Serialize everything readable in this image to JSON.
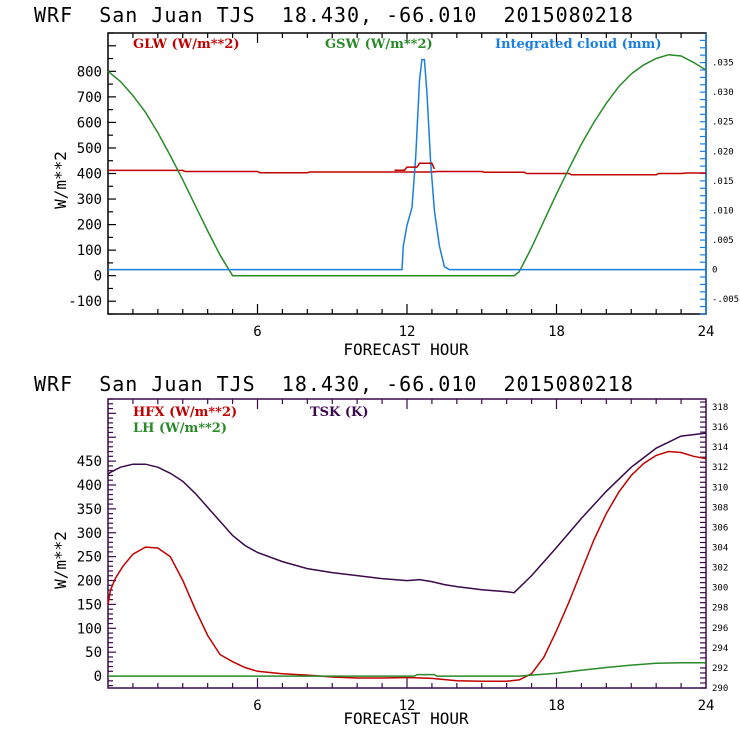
{
  "chart_data": [
    {
      "type": "line",
      "title": "WRF  San Juan TJS  18.430, -66.010  2015080218",
      "xlabel": "FORECAST HOUR",
      "ylabel": "W/m**2",
      "xlim": [
        0,
        24
      ],
      "ylim": [
        -150,
        950
      ],
      "y2lim": [
        -0.0075,
        0.04
      ],
      "x_ticks": [
        "6",
        "12",
        "18",
        "24"
      ],
      "x_tick_values": [
        6,
        12,
        18,
        24
      ],
      "y_ticks": [
        "800",
        "700",
        "600",
        "500",
        "400",
        "300",
        "200",
        "100",
        "0",
        "-100"
      ],
      "y_tick_values": [
        800,
        700,
        600,
        500,
        400,
        300,
        200,
        100,
        0,
        -100
      ],
      "y2_ticks": [
        ".035",
        ".030",
        ".025",
        ".020",
        ".015",
        ".010",
        ".005",
        "0",
        "-.005"
      ],
      "y2_tick_values": [
        0.035,
        0.03,
        0.025,
        0.02,
        0.015,
        0.01,
        0.005,
        0,
        -0.005
      ],
      "legend": [
        {
          "name": "GLW (W/m**2)",
          "color": "#c00000",
          "axis": "left"
        },
        {
          "name": "GSW (W/m**2)",
          "color": "#2a8a2a",
          "axis": "left"
        },
        {
          "name": "Integrated cloud (mm)",
          "color": "#1a7fe0",
          "axis": "right"
        }
      ],
      "series": [
        {
          "name": "GLW (W/m**2)",
          "color": "#c00000",
          "axis": "left",
          "x": [
            0,
            3,
            3.1,
            6,
            6.1,
            8,
            8.1,
            13,
            13.2,
            15,
            15.1,
            16.7,
            16.8,
            18.5,
            18.6,
            22,
            22.1,
            23,
            23.2,
            24
          ],
          "y": [
            412,
            412,
            408,
            408,
            403,
            403,
            406,
            406,
            408,
            408,
            405,
            405,
            400,
            400,
            395,
            395,
            400,
            400,
            402,
            402
          ]
        },
        {
          "name": "GSW (W/m**2)",
          "color": "#2a8a2a",
          "axis": "left",
          "x": [
            0,
            0.5,
            1,
            1.5,
            2,
            2.5,
            3,
            3.5,
            4,
            4.5,
            5,
            16.3,
            16.5,
            17,
            17.5,
            18,
            18.5,
            19,
            19.5,
            20,
            20.5,
            21,
            21.5,
            22,
            22.5,
            23,
            23.5,
            24
          ],
          "y": [
            800,
            760,
            705,
            640,
            560,
            470,
            375,
            275,
            175,
            80,
            0,
            0,
            15,
            110,
            215,
            320,
            420,
            515,
            600,
            675,
            740,
            790,
            825,
            850,
            865,
            860,
            835,
            805
          ]
        },
        {
          "name": "Integrated cloud (mm)",
          "color": "#1a7fe0",
          "axis": "right",
          "x": [
            0,
            11.8,
            11.85,
            12,
            12.2,
            12.35,
            12.5,
            12.6,
            12.7,
            12.8,
            12.95,
            13.1,
            13.3,
            13.5,
            13.7,
            24
          ],
          "y": [
            0,
            0,
            0.004,
            0.0075,
            0.0105,
            0.019,
            0.032,
            0.0355,
            0.0355,
            0.03,
            0.018,
            0.01,
            0.004,
            0.0005,
            0,
            0
          ]
        },
        {
          "name": "GLW step near hour 12-13",
          "color": "#c00000",
          "axis": "left",
          "overlay": true,
          "x": [
            11.5,
            11.9,
            12.0,
            12.4,
            12.5,
            13.0,
            13.1
          ],
          "y": [
            413,
            413,
            425,
            425,
            440,
            440,
            418
          ]
        }
      ]
    },
    {
      "type": "line",
      "title": "WRF  San Juan TJS  18.430, -66.010  2015080218",
      "xlabel": "FORECAST HOUR",
      "ylabel": "W/m**2",
      "xlim": [
        0,
        24
      ],
      "ylim": [
        -25,
        580
      ],
      "y2lim": [
        290,
        318.8
      ],
      "x_ticks": [
        "6",
        "12",
        "18",
        "24"
      ],
      "x_tick_values": [
        6,
        12,
        18,
        24
      ],
      "y_ticks": [
        "450",
        "400",
        "350",
        "300",
        "250",
        "200",
        "150",
        "100",
        "50",
        "0"
      ],
      "y_tick_values": [
        450,
        400,
        350,
        300,
        250,
        200,
        150,
        100,
        50,
        0
      ],
      "y2_ticks": [
        "318",
        "316",
        "314",
        "312",
        "310",
        "308",
        "306",
        "304",
        "302",
        "300",
        "298",
        "296",
        "294",
        "292",
        "290"
      ],
      "y2_tick_values": [
        318,
        316,
        314,
        312,
        310,
        308,
        306,
        304,
        302,
        300,
        298,
        296,
        294,
        292,
        290
      ],
      "legend": [
        {
          "name": "HFX (W/m**2)",
          "color": "#c00000",
          "axis": "left"
        },
        {
          "name": "LH  (W/m**2)",
          "color": "#2a8a2a",
          "axis": "left"
        },
        {
          "name": "TSK (K)",
          "color": "#3a0a4a",
          "axis": "right"
        }
      ],
      "series": [
        {
          "name": "HFX (W/m**2)",
          "color": "#c00000",
          "axis": "left",
          "x": [
            0,
            0.1,
            0.3,
            0.6,
            1,
            1.5,
            2,
            2.5,
            3,
            3.5,
            4,
            4.5,
            5,
            5.5,
            6,
            7,
            8,
            9,
            10,
            11,
            12,
            13,
            14,
            15,
            16,
            16.5,
            17,
            17.5,
            18,
            18.5,
            19,
            19.5,
            20,
            20.5,
            21,
            21.5,
            22,
            22.5,
            23,
            23.5,
            24
          ],
          "y": [
            150,
            180,
            205,
            230,
            255,
            270,
            268,
            250,
            200,
            140,
            85,
            45,
            30,
            18,
            10,
            5,
            2,
            -2,
            -4,
            -4,
            -3,
            -5,
            -10,
            -11,
            -11,
            -8,
            5,
            40,
            95,
            155,
            220,
            285,
            340,
            385,
            420,
            445,
            462,
            470,
            468,
            460,
            455
          ]
        },
        {
          "name": "LH  (W/m**2)",
          "color": "#2a8a2a",
          "axis": "left",
          "x": [
            0,
            12.3,
            12.4,
            13.1,
            13.2,
            16.5,
            17,
            18,
            19,
            20,
            21,
            22,
            23,
            23.9,
            24
          ],
          "y": [
            0,
            0,
            3,
            3,
            0,
            0,
            2,
            6,
            12,
            18,
            23,
            27,
            28,
            28,
            26
          ]
        },
        {
          "name": "TSK (K)",
          "color": "#3a0a4a",
          "axis": "right",
          "x": [
            0,
            0.1,
            0.5,
            1,
            1.5,
            2,
            2.5,
            3,
            3.5,
            4,
            4.5,
            5,
            5.5,
            6,
            7,
            8,
            9,
            10,
            11,
            12,
            12.5,
            13,
            13.5,
            14,
            15,
            16,
            16.3,
            17,
            18,
            19,
            20,
            21,
            22,
            23,
            24
          ],
          "y": [
            311.3,
            311.5,
            312.0,
            312.3,
            312.3,
            312.0,
            311.4,
            310.6,
            309.4,
            308.0,
            306.6,
            305.2,
            304.2,
            303.5,
            302.6,
            301.9,
            301.5,
            301.2,
            300.9,
            300.7,
            300.8,
            300.6,
            300.3,
            300.1,
            299.8,
            299.6,
            299.5,
            301.2,
            304.0,
            306.9,
            309.6,
            312.0,
            313.9,
            315.1,
            315.4
          ]
        }
      ]
    }
  ]
}
